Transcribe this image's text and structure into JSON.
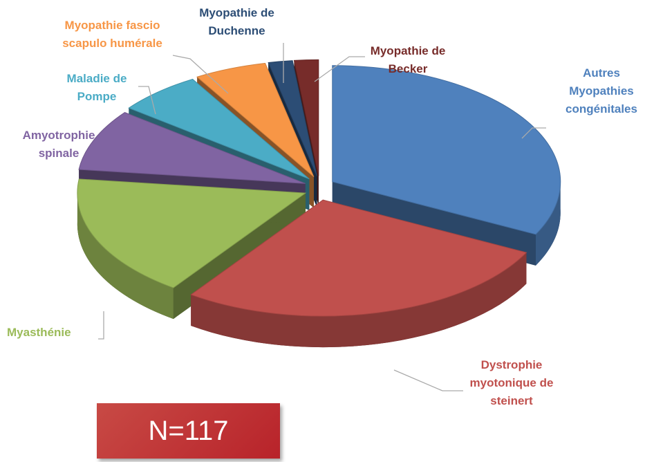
{
  "chart_data": {
    "type": "pie",
    "categories": [
      "Autres Myopathies congénitales",
      "Dystrophie myotonique de steinert",
      "Myasthénie",
      "Amyotrophie spinale",
      "Maladie de Pompe",
      "Myopathie fascio scapulo humérale",
      "Myopathie de Duchenne",
      "Myopathie de Becker"
    ],
    "values": [
      38,
      32,
      20,
      10,
      7,
      6,
      2,
      2
    ],
    "colors": [
      "#4f81bd",
      "#c0504d",
      "#9bbb59",
      "#8064a2",
      "#4bacc6",
      "#f79646",
      "#2c4d75",
      "#772c2a"
    ],
    "annotation": "N=117"
  }
}
